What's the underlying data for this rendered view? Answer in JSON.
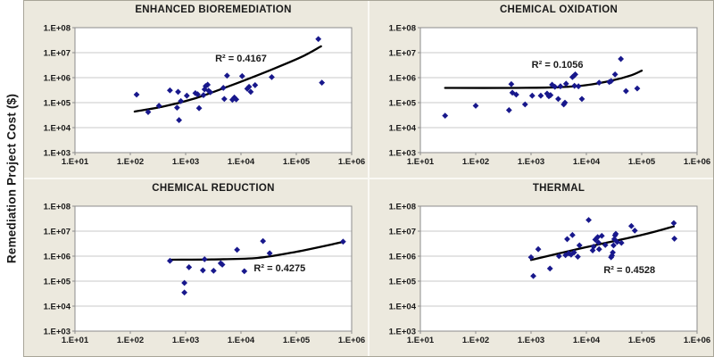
{
  "y_axis_title": "Remediation Project Cost ($)",
  "colors": {
    "canvas_bg": "#FFFFFF",
    "panel_bg": "#ECE9DE",
    "divider": "#FAF9F4",
    "plot_bg": "#FFFFFF",
    "gridline": "#C9C9C9",
    "axis_line": "#8C8C8C",
    "text": "#1A1A1A",
    "marker": "#18188C",
    "trendline": "#000000"
  },
  "axes": {
    "x_ticks": [
      "1.E+01",
      "1.E+02",
      "1.E+03",
      "1.E+04",
      "1.E+05",
      "1.E+06"
    ],
    "y_ticks": [
      "1.E+08",
      "1.E+07",
      "1.E+06",
      "1.E+05",
      "1.E+04",
      "1.E+03"
    ],
    "x_range": [
      10,
      1000000
    ],
    "y_range": [
      1000,
      100000000
    ],
    "x_scale": "log",
    "y_scale": "log",
    "grid": "horizontal-only"
  },
  "chart_data": [
    {
      "type": "scatter",
      "title": "ENHANCED BIOREMEDIATION",
      "annotation": "R² = 0.4167",
      "annotation_pos": [
        10000,
        5500000
      ],
      "xlabel": "",
      "ylabel": "Remediation Project Cost ($)",
      "x_range": [
        10,
        1000000
      ],
      "y_range": [
        1000,
        100000000
      ],
      "points": [
        [
          130,
          210000
        ],
        [
          210,
          42000
        ],
        [
          330,
          75000
        ],
        [
          520,
          310000
        ],
        [
          700,
          63000
        ],
        [
          730,
          270000
        ],
        [
          760,
          20000
        ],
        [
          820,
          115000
        ],
        [
          1050,
          190000
        ],
        [
          1500,
          240000
        ],
        [
          1650,
          215000
        ],
        [
          1750,
          60000
        ],
        [
          2100,
          200000
        ],
        [
          2200,
          340000
        ],
        [
          2300,
          460000
        ],
        [
          2500,
          520000
        ],
        [
          2600,
          300000
        ],
        [
          2800,
          260000
        ],
        [
          4800,
          390000
        ],
        [
          5000,
          140000
        ],
        [
          5600,
          1200000
        ],
        [
          7000,
          130000
        ],
        [
          7600,
          160000
        ],
        [
          8200,
          135000
        ],
        [
          10500,
          1150000
        ],
        [
          13000,
          360000
        ],
        [
          14000,
          430000
        ],
        [
          15000,
          270000
        ],
        [
          18000,
          500000
        ],
        [
          36000,
          1050000
        ],
        [
          250000,
          35000000
        ],
        [
          290000,
          630000
        ]
      ],
      "trendline": [
        [
          120,
          44000
        ],
        [
          400,
          70000
        ],
        [
          1500,
          150000
        ],
        [
          6000,
          450000
        ],
        [
          30000,
          1800000
        ],
        [
          120000,
          6500000
        ],
        [
          280000,
          18000000
        ]
      ]
    },
    {
      "type": "scatter",
      "title": "CHEMICAL OXIDATION",
      "annotation": "R² = 0.1056",
      "annotation_pos": [
        3000,
        3100000
      ],
      "xlabel": "",
      "ylabel": "Remediation Project Cost ($)",
      "x_range": [
        10,
        1000000
      ],
      "y_range": [
        1000,
        100000000
      ],
      "points": [
        [
          28,
          30000
        ],
        [
          100,
          75000
        ],
        [
          400,
          50000
        ],
        [
          440,
          550000
        ],
        [
          460,
          250000
        ],
        [
          540,
          210000
        ],
        [
          780,
          85000
        ],
        [
          1050,
          190000
        ],
        [
          1500,
          190000
        ],
        [
          1950,
          230000
        ],
        [
          2100,
          180000
        ],
        [
          2250,
          200000
        ],
        [
          2400,
          520000
        ],
        [
          2700,
          430000
        ],
        [
          3100,
          140000
        ],
        [
          3400,
          450000
        ],
        [
          3900,
          85000
        ],
        [
          4100,
          100000
        ],
        [
          4300,
          570000
        ],
        [
          5600,
          1050000
        ],
        [
          6000,
          1200000
        ],
        [
          6300,
          1350000
        ],
        [
          6100,
          470000
        ],
        [
          7200,
          450000
        ],
        [
          8300,
          140000
        ],
        [
          17000,
          630000
        ],
        [
          26000,
          670000
        ],
        [
          28000,
          730000
        ],
        [
          33000,
          1350000
        ],
        [
          42000,
          5600000
        ],
        [
          52000,
          290000
        ],
        [
          83000,
          370000
        ]
      ],
      "trendline": [
        [
          28,
          390000
        ],
        [
          500,
          390000
        ],
        [
          3000,
          410000
        ],
        [
          10000,
          500000
        ],
        [
          30000,
          780000
        ],
        [
          65000,
          1250000
        ],
        [
          100000,
          1900000
        ]
      ]
    },
    {
      "type": "scatter",
      "title": "CHEMICAL REDUCTION",
      "annotation": "R² = 0.4275",
      "annotation_pos": [
        50000,
        320000
      ],
      "xlabel": "",
      "ylabel": "Remediation Project Cost ($)",
      "x_range": [
        10,
        1000000
      ],
      "y_range": [
        1000,
        100000000
      ],
      "points": [
        [
          520,
          650000
        ],
        [
          950,
          85000
        ],
        [
          950,
          35000
        ],
        [
          1150,
          360000
        ],
        [
          2050,
          270000
        ],
        [
          2200,
          750000
        ],
        [
          3200,
          260000
        ],
        [
          4300,
          520000
        ],
        [
          4600,
          460000
        ],
        [
          8500,
          1800000
        ],
        [
          11500,
          250000
        ],
        [
          25000,
          4000000
        ],
        [
          33000,
          1300000
        ],
        [
          700000,
          3800000
        ]
      ],
      "trendline": [
        [
          520,
          720000
        ],
        [
          3000,
          740000
        ],
        [
          20000,
          850000
        ],
        [
          100000,
          1500000
        ],
        [
          700000,
          3700000
        ]
      ]
    },
    {
      "type": "scatter",
      "title": "THERMAL",
      "annotation": "R² = 0.4528",
      "annotation_pos": [
        60000,
        270000
      ],
      "xlabel": "",
      "ylabel": "Remediation Project Cost ($)",
      "x_range": [
        10,
        1000000
      ],
      "y_range": [
        1000,
        100000000
      ],
      "points": [
        [
          1000,
          900000
        ],
        [
          1100,
          160000
        ],
        [
          1350,
          1900000
        ],
        [
          2200,
          320000
        ],
        [
          3200,
          1000000
        ],
        [
          4200,
          1100000
        ],
        [
          4500,
          4800000
        ],
        [
          4800,
          1300000
        ],
        [
          5300,
          1150000
        ],
        [
          5600,
          7000000
        ],
        [
          6000,
          1400000
        ],
        [
          7000,
          950000
        ],
        [
          7500,
          2700000
        ],
        [
          11000,
          28000000
        ],
        [
          13000,
          1700000
        ],
        [
          13500,
          2400000
        ],
        [
          14500,
          4600000
        ],
        [
          16000,
          5800000
        ],
        [
          16500,
          3500000
        ],
        [
          17000,
          1900000
        ],
        [
          19000,
          6500000
        ],
        [
          22000,
          2800000
        ],
        [
          28000,
          900000
        ],
        [
          29000,
          1050000
        ],
        [
          30000,
          1400000
        ],
        [
          31000,
          2700000
        ],
        [
          32000,
          4800000
        ],
        [
          33000,
          6800000
        ],
        [
          34000,
          7800000
        ],
        [
          36000,
          3700000
        ],
        [
          43000,
          3400000
        ],
        [
          65000,
          16000000
        ],
        [
          75000,
          10500000
        ],
        [
          380000,
          21000000
        ],
        [
          390000,
          5000000
        ]
      ],
      "trendline": [
        [
          1000,
          700000
        ],
        [
          10000,
          2300000
        ],
        [
          100000,
          7000000
        ],
        [
          380000,
          15500000
        ]
      ]
    }
  ]
}
